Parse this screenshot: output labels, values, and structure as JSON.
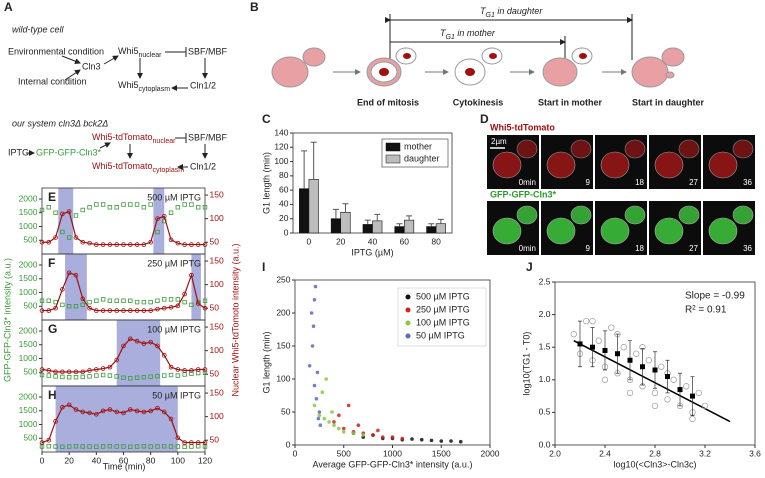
{
  "panel_letters": [
    "A",
    "B",
    "C",
    "D",
    "E",
    "F",
    "G",
    "H",
    "I",
    "J"
  ],
  "diagram_a": {
    "wild_type_title": "wild-type  cell",
    "environmental": "Environmental condition",
    "internal": "Internal condition",
    "cln3": "Cln3",
    "whi5_nuclear": {
      "main": "Whi5",
      "sub": "nuclear"
    },
    "sbf_mbf": "SBF/MBF",
    "whi5_cytoplasm": {
      "main": "Whi5",
      "sub": "cytoplasm"
    },
    "cln12": "Cln1/2",
    "system_title": "our system cln3Δ bck2Δ",
    "iptg": "IPTG",
    "gfp_cln3": "GFP-GFP-Cln3*",
    "tdtomato_nuclear": {
      "main": "Whi5-tdTomato",
      "sub": "nuclear"
    },
    "sbf_mbf_2": "SBF/MBF",
    "tdtomato_cytoplasm": {
      "main": "Whi5-tdTomato",
      "sub": "cytoplasm"
    },
    "cln12_2": "Cln1/2"
  },
  "diagram_b": {
    "tg1_daughter": {
      "main": "T",
      "sub": "G1",
      "rest": " in daughter"
    },
    "tg1_mother": {
      "main": "T",
      "sub": "G1",
      "rest": " in mother"
    },
    "stages": [
      "End of mitosis",
      "Cytokinesis",
      "Start in mother",
      "Start in daughter"
    ]
  },
  "micrographs": {
    "top_label": "Whi5-tdTomato",
    "bottom_label": "GFP-GFP-Cln3*",
    "scale_bar": "2µm",
    "times": [
      "0min",
      "9",
      "18",
      "27",
      "36"
    ]
  },
  "timecourse_labels": {
    "y_label": "GFP-GFP-Cln3* intensity (a.u.)",
    "y2_label": "Nuclear Whi5-tdTomoto intensity (a.u.)",
    "x_label": "Time (min)"
  },
  "chart_data": [
    {
      "type": "bar",
      "x_label": "IPTG (µM)",
      "y_label": "G1 length (min)",
      "categories": [
        "0",
        "20",
        "40",
        "60",
        "80"
      ],
      "series": [
        {
          "name": "mother",
          "color": "#111111",
          "values": [
            62,
            20,
            12,
            9,
            9
          ],
          "errors": [
            53,
            13,
            6,
            4,
            4
          ]
        },
        {
          "name": "daughter",
          "color": "#bdbdbd",
          "values": [
            75,
            29,
            17,
            18,
            13
          ],
          "errors": [
            52,
            12,
            9,
            6,
            6
          ]
        }
      ],
      "ylim": [
        0,
        140
      ],
      "yticks": [
        0,
        20,
        40,
        60,
        80,
        100,
        120,
        140
      ],
      "legend": "top-right"
    },
    {
      "type": "line",
      "label": "500 µM IPTG",
      "xlim": [
        0,
        120
      ],
      "x": [
        0,
        5,
        10,
        15,
        20,
        25,
        30,
        35,
        40,
        45,
        50,
        55,
        60,
        65,
        70,
        75,
        80,
        85,
        90,
        95,
        100,
        105,
        110,
        115,
        120
      ],
      "shaded": [
        [
          12,
          23
        ],
        [
          82,
          90
        ]
      ],
      "ylim": [
        0,
        2400
      ],
      "yticks": [
        500,
        1000,
        1500,
        2000
      ],
      "y2lim": [
        25,
        165
      ],
      "y2ticks": [
        50,
        100,
        150
      ],
      "series": [
        {
          "color": "#3a9a3a",
          "marker": "square",
          "values": [
            1600,
            1700,
            1500,
            800,
            600,
            1400,
            1600,
            1700,
            1800,
            1800,
            1700,
            1700,
            1800,
            1800,
            1800,
            1700,
            1800,
            800,
            1200,
            1500,
            1700,
            1800,
            1800,
            1700,
            1700
          ]
        },
        {
          "color": "#a01010",
          "marker": "circle",
          "line": true,
          "axis": "y2",
          "values": [
            50,
            50,
            60,
            110,
            115,
            60,
            50,
            48,
            45,
            45,
            45,
            45,
            45,
            45,
            45,
            45,
            50,
            100,
            105,
            55,
            48,
            45,
            45,
            45,
            45
          ]
        }
      ]
    },
    {
      "type": "line",
      "label": "250 µM IPTG",
      "xlim": [
        0,
        120
      ],
      "x": [
        0,
        5,
        10,
        15,
        20,
        25,
        30,
        35,
        40,
        45,
        50,
        55,
        60,
        65,
        70,
        75,
        80,
        85,
        90,
        95,
        100,
        105,
        110,
        115,
        120
      ],
      "shaded": [
        [
          17,
          33
        ],
        [
          110,
          117
        ]
      ],
      "ylim": [
        0,
        2400
      ],
      "yticks": [
        500,
        1000,
        1500,
        2000
      ],
      "y2lim": [
        25,
        165
      ],
      "y2ticks": [
        50,
        100,
        150
      ],
      "series": [
        {
          "color": "#3a9a3a",
          "marker": "square",
          "values": [
            700,
            700,
            650,
            550,
            500,
            500,
            550,
            650,
            700,
            750,
            700,
            700,
            700,
            700,
            650,
            650,
            650,
            700,
            750,
            750,
            750,
            650,
            550,
            650,
            700
          ]
        },
        {
          "color": "#a01010",
          "marker": "circle",
          "line": true,
          "axis": "y2",
          "values": [
            45,
            45,
            50,
            90,
            125,
            120,
            70,
            50,
            45,
            45,
            45,
            45,
            45,
            45,
            45,
            45,
            45,
            48,
            50,
            52,
            55,
            80,
            120,
            60,
            50
          ]
        }
      ]
    },
    {
      "type": "line",
      "label": "100 µM IPTG",
      "xlim": [
        0,
        120
      ],
      "x": [
        0,
        5,
        10,
        15,
        20,
        25,
        30,
        35,
        40,
        45,
        50,
        55,
        60,
        65,
        70,
        75,
        80,
        85,
        90,
        95,
        100,
        105,
        110,
        115,
        120
      ],
      "shaded": [
        [
          55,
          87
        ]
      ],
      "ylim": [
        0,
        2400
      ],
      "yticks": [
        500,
        1000,
        1500,
        2000
      ],
      "y2lim": [
        25,
        165
      ],
      "y2ticks": [
        50,
        100,
        150
      ],
      "series": [
        {
          "color": "#3a9a3a",
          "marker": "square",
          "values": [
            400,
            380,
            350,
            330,
            320,
            320,
            330,
            350,
            380,
            400,
            380,
            350,
            300,
            280,
            300,
            320,
            340,
            360,
            380,
            400,
            380,
            420,
            450,
            470,
            480
          ]
        },
        {
          "color": "#a01010",
          "marker": "circle",
          "line": true,
          "axis": "y2",
          "values": [
            60,
            58,
            55,
            55,
            55,
            55,
            55,
            58,
            60,
            62,
            65,
            80,
            110,
            125,
            120,
            115,
            118,
            110,
            90,
            65,
            60,
            58,
            58,
            60,
            60
          ]
        }
      ]
    },
    {
      "type": "line",
      "label": "50 µM IPTG",
      "xlim": [
        0,
        120
      ],
      "xticks": [
        0,
        20,
        40,
        60,
        80,
        100,
        120
      ],
      "x": [
        0,
        5,
        10,
        15,
        20,
        25,
        30,
        35,
        40,
        45,
        50,
        55,
        60,
        65,
        70,
        75,
        80,
        85,
        90,
        95,
        100,
        105,
        110,
        115,
        120
      ],
      "shaded": [
        [
          10,
          100
        ]
      ],
      "ylim": [
        0,
        2400
      ],
      "yticks": [
        500,
        1000,
        1500,
        2000
      ],
      "y2lim": [
        25,
        165
      ],
      "y2ticks": [
        50,
        100,
        150
      ],
      "series": [
        {
          "color": "#3a9a3a",
          "marker": "square",
          "values": [
            200,
            210,
            200,
            190,
            200,
            210,
            200,
            200,
            190,
            200,
            210,
            200,
            200,
            190,
            200,
            210,
            200,
            200,
            210,
            200,
            200,
            190,
            200,
            210,
            200
          ]
        },
        {
          "color": "#a01010",
          "marker": "circle",
          "line": true,
          "axis": "y2",
          "values": [
            45,
            50,
            90,
            120,
            125,
            115,
            110,
            108,
            105,
            112,
            115,
            110,
            108,
            115,
            112,
            110,
            112,
            118,
            110,
            95,
            55,
            45,
            45,
            45,
            45
          ]
        }
      ]
    },
    {
      "type": "scatter",
      "x_label": "Average GFP-GFP-Cln3* intensity (a.u.)",
      "y_label": "G1 length (min)",
      "xlim": [
        0,
        2000
      ],
      "xticks": [
        0,
        500,
        1000,
        1500,
        2000
      ],
      "ylim": [
        0,
        250
      ],
      "yticks": [
        0,
        50,
        100,
        150,
        200,
        250
      ],
      "legend": "top-right",
      "series": [
        {
          "name": "500 µM IPTG",
          "color": "#111111",
          "marker": "dot",
          "x": [
            700,
            900,
            1100,
            1300,
            1500,
            1700,
            800,
            1000,
            1200,
            600,
            1400,
            1600
          ],
          "y": [
            12,
            10,
            8,
            8,
            6,
            5,
            15,
            10,
            9,
            18,
            7,
            6
          ]
        },
        {
          "name": "250 µM IPTG",
          "color": "#d62020",
          "marker": "dot",
          "x": [
            400,
            500,
            600,
            700,
            800,
            900,
            1000,
            1100,
            450,
            650,
            850,
            550
          ],
          "y": [
            35,
            25,
            20,
            18,
            15,
            12,
            12,
            10,
            45,
            30,
            22,
            60
          ]
        },
        {
          "name": "100 µM IPTG",
          "color": "#8dc63f",
          "marker": "dot",
          "x": [
            200,
            250,
            300,
            350,
            400,
            450,
            500,
            600,
            700,
            280,
            380,
            320
          ],
          "y": [
            60,
            45,
            40,
            35,
            30,
            25,
            20,
            18,
            15,
            80,
            50,
            100
          ]
        },
        {
          "name": "50 µM IPTG",
          "color": "#5b6bbf",
          "marker": "dot",
          "x": [
            150,
            180,
            200,
            220,
            250,
            170,
            190,
            210,
            240,
            260,
            230,
            200
          ],
          "y": [
            120,
            150,
            90,
            70,
            50,
            200,
            180,
            240,
            40,
            30,
            110,
            220
          ]
        }
      ]
    },
    {
      "type": "scatter",
      "x_label": "log10(<Cln3>-Cln3c)",
      "y_label": "log10(TG1 - T0)",
      "xlim": [
        2,
        3.6
      ],
      "xticks": [
        {
          "value": 2,
          "label": "2.0"
        },
        2.4,
        2.8,
        3.2,
        3.6
      ],
      "ylim": [
        0,
        2.5
      ],
      "yticks": [
        {
          "value": 0,
          "label": "0.0"
        },
        0.5,
        {
          "value": 1,
          "label": "1.0"
        },
        1.5,
        {
          "value": 2,
          "label": "2.0"
        },
        2.5
      ],
      "annotations": [
        "Slope = -0.99",
        "R² = 0.91"
      ],
      "fit": {
        "color": "#000000",
        "x": [
          2.15,
          3.4
        ],
        "y": [
          1.6,
          0.36
        ]
      },
      "series": [
        {
          "color": "#9a9a9a",
          "marker": "circle",
          "x": [
            2.15,
            2.2,
            2.25,
            2.3,
            2.35,
            2.4,
            2.45,
            2.5,
            2.55,
            2.6,
            2.65,
            2.7,
            2.75,
            2.8,
            2.85,
            2.9,
            2.95,
            3.0,
            3.05,
            3.1,
            3.15,
            3.2,
            2.3,
            2.5,
            2.7,
            2.9,
            3.1,
            2.4,
            2.6,
            2.8
          ],
          "y": [
            1.7,
            1.4,
            1.9,
            1.3,
            1.6,
            1.2,
            1.8,
            1.1,
            1.5,
            1.0,
            1.4,
            0.9,
            1.3,
            0.8,
            1.2,
            0.7,
            1.0,
            0.6,
            0.9,
            0.5,
            0.8,
            0.6,
            1.9,
            1.7,
            1.5,
            1.1,
            0.4,
            1.0,
            0.8,
            0.6
          ]
        },
        {
          "color": "#000000",
          "marker": "square",
          "x": [
            2.2,
            2.3,
            2.4,
            2.5,
            2.6,
            2.7,
            2.8,
            2.9,
            3.0,
            3.1
          ],
          "y": [
            1.55,
            1.5,
            1.45,
            1.4,
            1.3,
            1.2,
            1.15,
            1.05,
            0.85,
            0.75
          ],
          "errors": [
            0.35,
            0.3,
            0.3,
            0.3,
            0.3,
            0.28,
            0.28,
            0.25,
            0.25,
            0.3
          ]
        }
      ]
    }
  ]
}
